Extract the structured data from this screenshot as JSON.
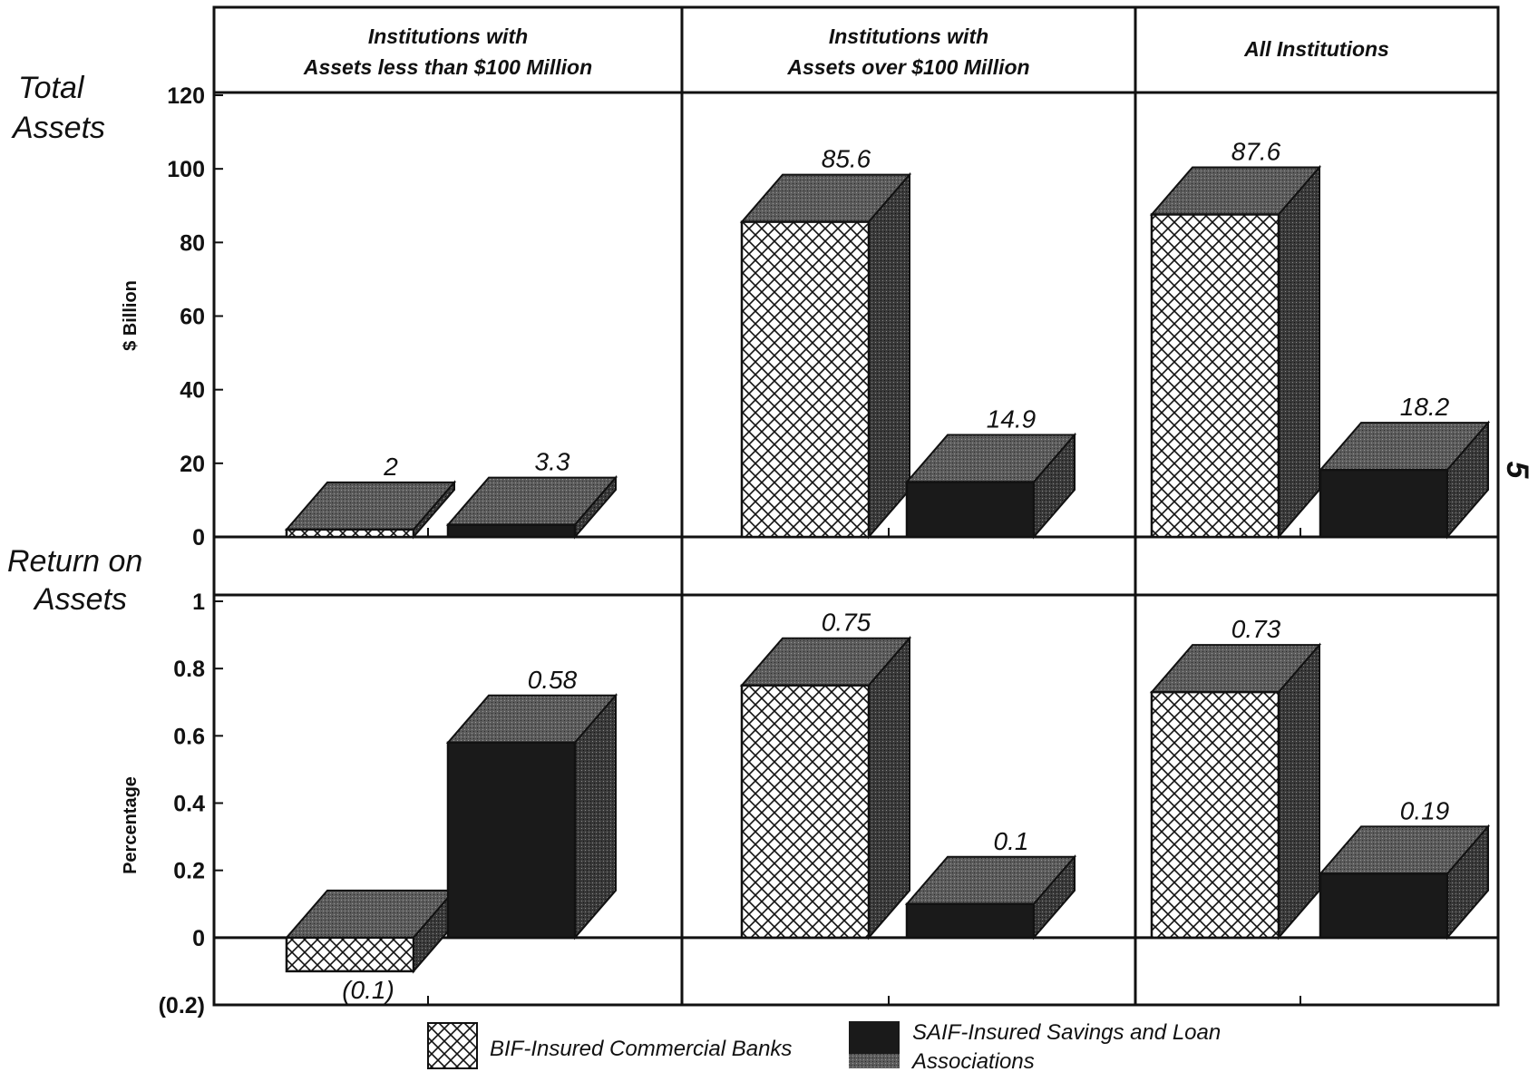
{
  "sections": {
    "total_assets": "Total\nAssets",
    "return_on_assets": "Return on\nAssets"
  },
  "page_number": "5",
  "legend": {
    "bif": "BIF-Insured Commercial Banks",
    "saif_line1": "SAIF-Insured Savings and Loan",
    "saif_line2": "Associations"
  },
  "colors": {
    "saif": "#1a1a1a",
    "bif_fill": "#ffffff",
    "top_face": "#4a4a4a",
    "side_face": "#5a5a5a"
  },
  "chart_data": [
    {
      "type": "bar",
      "title": "",
      "ylabel": "$ Billion",
      "ylim": [
        0,
        120
      ],
      "yticks": [
        "0",
        "20",
        "40",
        "60",
        "80",
        "100",
        "120"
      ],
      "categories": [
        "Institutions with\nAssets less than $100 Million",
        "Institutions with\nAssets over $100 Million",
        "All Institutions"
      ],
      "series": [
        {
          "name": "BIF-Insured Commercial Banks",
          "values": [
            2,
            85.6,
            87.6
          ],
          "labels": [
            "2",
            "85.6",
            "87.6"
          ]
        },
        {
          "name": "SAIF-Insured Savings and Loan Associations",
          "values": [
            3.3,
            14.9,
            18.2
          ],
          "labels": [
            "3.3",
            "14.9",
            "18.2"
          ]
        }
      ]
    },
    {
      "type": "bar",
      "title": "",
      "ylabel": "Percentage",
      "ylim": [
        -0.2,
        1
      ],
      "yticks": [
        "(0.2)",
        "0",
        "0.2",
        "0.4",
        "0.6",
        "0.8",
        "1"
      ],
      "categories": [
        "Institutions with\nAssets less than $100 Million",
        "Institutions with\nAssets over $100 Million",
        "All Institutions"
      ],
      "series": [
        {
          "name": "BIF-Insured Commercial Banks",
          "values": [
            -0.1,
            0.75,
            0.73
          ],
          "labels": [
            "(0.1)",
            "0.75",
            "0.73"
          ]
        },
        {
          "name": "SAIF-Insured Savings and Loan Associations",
          "values": [
            0.58,
            0.1,
            0.19
          ],
          "labels": [
            "0.58",
            "0.1",
            "0.19"
          ]
        }
      ]
    }
  ]
}
